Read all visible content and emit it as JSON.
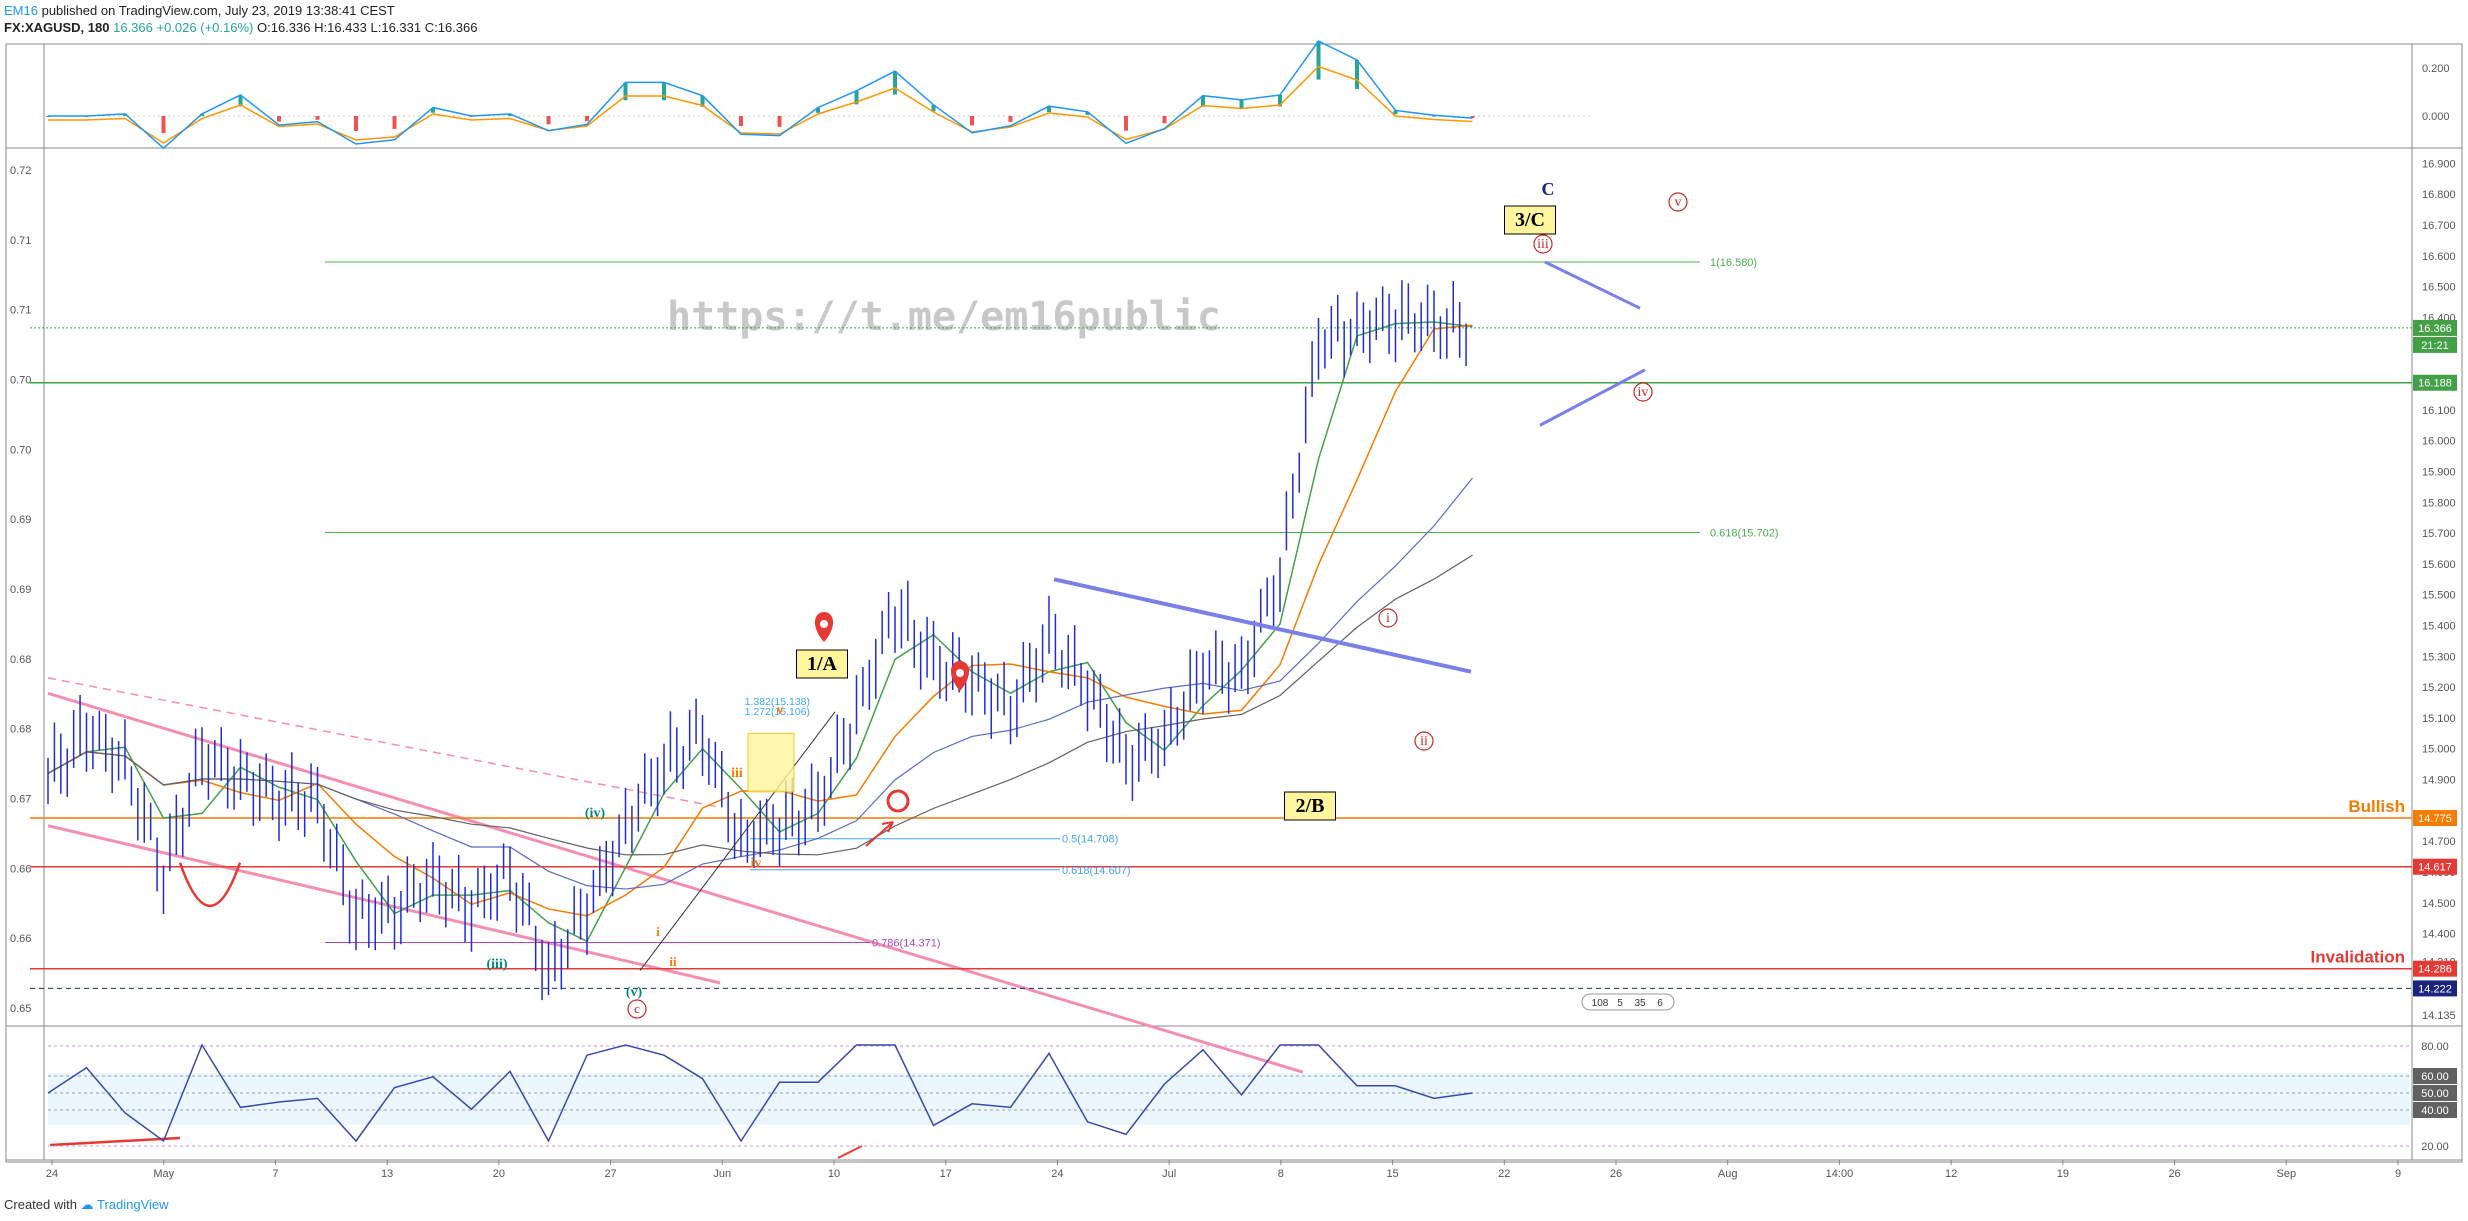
{
  "header": {
    "author": "EM16",
    "published": "published on TradingView.com, July 23, 2019 13:38:41 CEST",
    "symbol": "FX:XAGUSD, 180",
    "last": "16.366",
    "change": "+0.026 (+0.16%)",
    "open": "O:16.336",
    "high": "H:16.433",
    "low": "L:16.331",
    "close": "C:16.366"
  },
  "watermark": "https://t.me/em16public",
  "footer": {
    "created": "Created with",
    "brand": "TradingView"
  },
  "chart_data": [
    {
      "type": "line",
      "name": "main-price-chart",
      "x_axis_labels": [
        "24",
        "May",
        "7",
        "13",
        "20",
        "27",
        "Jun",
        "10",
        "17",
        "24",
        "Jul",
        "8",
        "15",
        "22",
        "26",
        "Aug",
        "14:00",
        "12",
        "19",
        "26",
        "Sep",
        "9"
      ],
      "right_axis_ticks": [
        "16.900",
        "16.800",
        "16.700",
        "16.600",
        "16.500",
        "16.400",
        "16.300",
        "16.100",
        "16.000",
        "15.900",
        "15.800",
        "15.700",
        "15.600",
        "15.500",
        "15.400",
        "15.300",
        "15.200",
        "15.100",
        "15.000",
        "14.900",
        "14.700",
        "14.600",
        "14.500",
        "14.400",
        "14.310",
        "14.135"
      ],
      "left_axis_ticks": [
        "0.72",
        "0.71",
        "0.71",
        "0.70",
        "0.70",
        "0.69",
        "0.69",
        "0.68",
        "0.68",
        "0.67",
        "0.66",
        "0.66",
        "0.65"
      ],
      "ylim": [
        14.1,
        16.95
      ],
      "price_labels": [
        {
          "value": "16.366",
          "color": "#43a047"
        },
        {
          "value": "21:21",
          "color": "#43a047"
        },
        {
          "value": "16.188",
          "color": "#43a047"
        },
        {
          "value": "14.775",
          "color": "#f57c00"
        },
        {
          "value": "14.617",
          "color": "#e53935"
        },
        {
          "value": "14.286",
          "color": "#e53935"
        },
        {
          "value": "14.222",
          "color": "#1a237e"
        }
      ],
      "price_series": {
        "x": [
          0,
          3,
          6,
          9,
          12,
          15,
          18,
          21,
          24,
          27,
          30,
          33,
          36,
          39,
          42,
          45,
          48,
          51,
          54,
          57,
          60,
          63,
          66,
          69,
          72,
          75,
          78,
          81,
          84,
          87,
          90,
          93,
          96,
          99,
          102,
          105,
          108,
          111,
          114,
          117,
          120
        ],
        "close": [
          14.92,
          15.06,
          14.95,
          14.6,
          14.98,
          14.9,
          14.85,
          14.82,
          14.45,
          14.48,
          14.57,
          14.48,
          14.6,
          14.27,
          14.48,
          14.75,
          14.96,
          15.04,
          14.7,
          14.76,
          14.82,
          15.12,
          15.46,
          15.28,
          15.22,
          15.14,
          15.36,
          15.2,
          14.97,
          15.02,
          15.26,
          15.25,
          15.56,
          16.32,
          16.36,
          16.4,
          16.37,
          16.37,
          null,
          null,
          null
        ]
      },
      "fib_levels": [
        {
          "label": "1(16.580)",
          "value": 16.58,
          "color": "#4caf50"
        },
        {
          "label": "0.618(15.702)",
          "value": 15.702,
          "color": "#4caf50"
        },
        {
          "label": "0.5(14.708)",
          "value": 14.708,
          "color": "#42a5f5"
        },
        {
          "label": "0.618(14.607)",
          "value": 14.607,
          "color": "#42a5f5"
        },
        {
          "label": "0.786(14.371)",
          "value": 14.371,
          "color": "#ab47bc"
        },
        {
          "label": "1.382(15.138)",
          "value": 15.138,
          "color": "#42a5f5"
        },
        {
          "label": "1.272(15.106)",
          "value": 15.106,
          "color": "#42a5f5"
        }
      ],
      "horizontal_lines": [
        {
          "label": "Bullish",
          "value": 14.775,
          "color": "#f57c00"
        },
        {
          "label": "",
          "value": 14.617,
          "color": "#e53935"
        },
        {
          "label": "Invalidation",
          "value": 14.286,
          "color": "#e53935"
        }
      ],
      "wave_labels": [
        "C",
        "3/C",
        "iii",
        "v",
        "iv",
        "1/A",
        "2/B",
        "i",
        "ii",
        "(iv)",
        "(iii)",
        "(v)",
        "c",
        "iii",
        "v",
        "iv",
        "i",
        "ii"
      ],
      "indicator_badges": [
        "108",
        "5",
        "35",
        "6"
      ]
    },
    {
      "type": "line",
      "name": "macd-pane",
      "y_ticks": [
        "0.200",
        "0.000"
      ],
      "series_colors": {
        "macd": "#2196f3",
        "signal": "#ff9800",
        "hist_up": "#26a69a",
        "hist_down": "#ef5350"
      }
    },
    {
      "type": "line",
      "name": "rsi-pane",
      "y_ticks": [
        "80.00",
        "60.00",
        "50.00",
        "40.00",
        "20.00"
      ],
      "band": [
        40,
        60
      ]
    }
  ],
  "colors": {
    "price": "#1e2bd6",
    "ma_fast": "#43a047",
    "ma_mid": "#f57c00",
    "ma_slow": "#5c6bc0",
    "ma_200": "#616161",
    "channel": "#f48fb1",
    "trendline": "#7b7fe8"
  }
}
